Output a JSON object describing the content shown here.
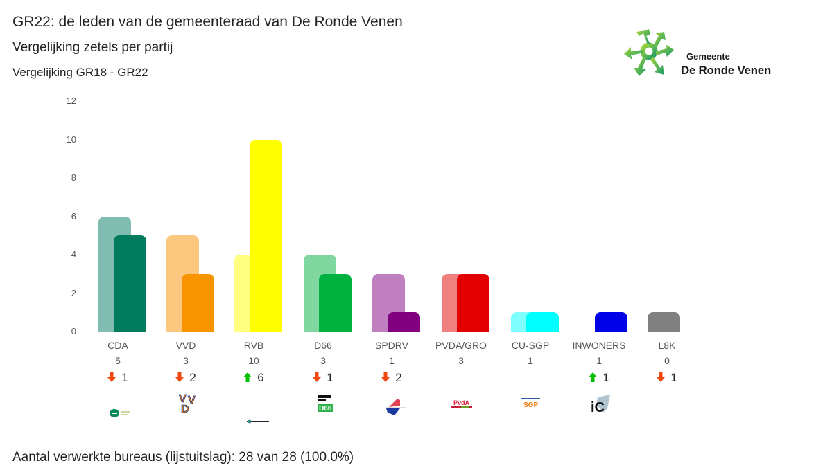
{
  "header": {
    "title": "GR22: de leden van de gemeenteraad van De Ronde Venen",
    "subtitle": "Vergelijking zetels per partij",
    "comparison": "Vergelijking GR18 - GR22"
  },
  "logo": {
    "line1": "Gemeente",
    "line2": "De Ronde Venen",
    "icon": "municipality-star-logo"
  },
  "chart_data": {
    "type": "bar",
    "title": "Vergelijking zetels per partij",
    "subtitle": "Vergelijking GR18 - GR22",
    "xlabel": "",
    "ylabel": "",
    "ylim": [
      0,
      12
    ],
    "yticks": [
      0,
      2,
      4,
      6,
      8,
      10,
      12
    ],
    "grid": false,
    "legend": "none",
    "categories": [
      "CDA",
      "VVD",
      "RVB",
      "D66",
      "SPDRV",
      "PVDA/GRO",
      "CU-SGP",
      "INWONERS",
      "L8K"
    ],
    "series": [
      {
        "name": "GR18",
        "values": [
          6,
          5,
          4,
          4,
          3,
          3,
          1,
          0,
          1
        ]
      },
      {
        "name": "GR22",
        "values": [
          5,
          3,
          10,
          3,
          1,
          3,
          1,
          1,
          0
        ]
      }
    ],
    "changes": [
      {
        "direction": "down",
        "value": 1
      },
      {
        "direction": "down",
        "value": 2
      },
      {
        "direction": "up",
        "value": 6
      },
      {
        "direction": "down",
        "value": 1
      },
      {
        "direction": "down",
        "value": 2
      },
      {
        "direction": "none",
        "value": null
      },
      {
        "direction": "none",
        "value": null
      },
      {
        "direction": "up",
        "value": 1
      },
      {
        "direction": "down",
        "value": 1
      }
    ],
    "colors": {
      "GR18": [
        "#80bcaf",
        "#fcc880",
        "#ffff80",
        "#80d8a0",
        "#c080c0",
        "#f08080",
        "#80ffff",
        "#8080ff",
        "#808080"
      ],
      "GR22": [
        "#007b5e",
        "#f89400",
        "#ffff00",
        "#00b140",
        "#800080",
        "#e30000",
        "#00ffff",
        "#0000e6",
        "#808080"
      ]
    }
  },
  "parties": [
    {
      "name": "CDA",
      "seats": "5",
      "change": "1",
      "direction": "down",
      "logo": "cda-logo"
    },
    {
      "name": "VVD",
      "seats": "3",
      "change": "2",
      "direction": "down",
      "logo": "vvd-logo"
    },
    {
      "name": "RVB",
      "seats": "10",
      "change": "6",
      "direction": "up",
      "logo": "rvb-logo"
    },
    {
      "name": "D66",
      "seats": "3",
      "change": "1",
      "direction": "down",
      "logo": "d66-logo"
    },
    {
      "name": "SPDRV",
      "seats": "1",
      "change": "2",
      "direction": "down",
      "logo": "spdrv-logo"
    },
    {
      "name": "PVDA/GRO",
      "seats": "3",
      "change": "",
      "direction": "none",
      "logo": "pvda-groenlinks-logo"
    },
    {
      "name": "CU-SGP",
      "seats": "1",
      "change": "",
      "direction": "none",
      "logo": "cu-sgp-logo"
    },
    {
      "name": "INWONERS",
      "seats": "1",
      "change": "1",
      "direction": "up",
      "logo": "inwoners-logo"
    },
    {
      "name": "L8K",
      "seats": "0",
      "change": "1",
      "direction": "down",
      "logo": ""
    }
  ],
  "arrow_colors": {
    "up": "#00c000",
    "down": "#f04a10"
  },
  "footer": {
    "text": "Aantal verwerkte bureaus (lijstuitslag): 28 van 28 (100.0%)"
  }
}
